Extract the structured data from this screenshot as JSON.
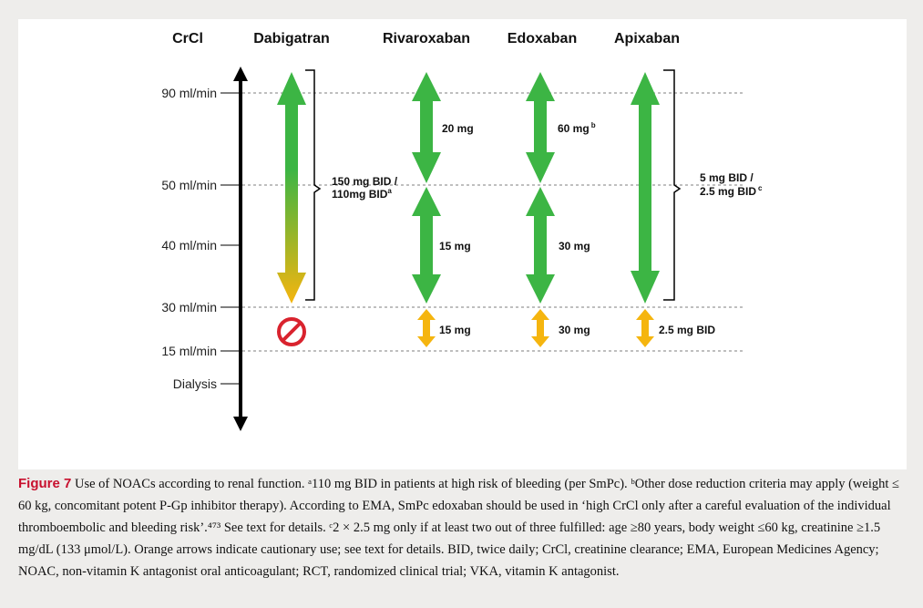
{
  "headers": {
    "crcl": "CrCl",
    "dabigatran": "Dabigatran",
    "rivaroxaban": "Rivaroxaban",
    "edoxaban": "Edoxaban",
    "apixaban": "Apixaban"
  },
  "crcl_levels": [
    "90 ml/min",
    "50 ml/min",
    "40 ml/min",
    "30 ml/min",
    "15 ml/min",
    "Dialysis"
  ],
  "doses": {
    "dabigatran_line1": "150 mg BID /",
    "dabigatran_line2": "110mg BID",
    "dabigatran_sup": "a",
    "rivaroxaban_high": "20 mg",
    "rivaroxaban_mid": "15 mg",
    "rivaroxaban_low": "15 mg",
    "edoxaban_high": "60 mg",
    "edoxaban_high_sup": "b",
    "edoxaban_mid": "30 mg",
    "edoxaban_low": "30 mg",
    "apixaban_line1": "5 mg BID /",
    "apixaban_line2": "2.5 mg BID",
    "apixaban_sup": "c",
    "apixaban_low": "2.5 mg BID"
  },
  "colors": {
    "green": "#3cb544",
    "orange": "#f5b50f",
    "red": "#d9232e",
    "caption_label": "#c8102e"
  },
  "icons": {
    "not_recommended": "prohibited-icon"
  },
  "caption": {
    "label": "Figure 7",
    "text": "Use of NOACs according to renal function. ᵃ110 mg BID in patients at high risk of bleeding (per SmPc). ᵇOther dose reduction criteria may apply (weight ≤ 60 kg, concomitant potent P-Gp inhibitor therapy). According to EMA, SmPc edoxaban should be used in ‘high CrCl only after a careful evaluation of the individual thromboembolic and bleeding risk’.⁴⁷³ See text for details. ᶜ2 × 2.5 mg only if at least two out of three fulfilled: age ≥80 years, body weight ≤60 kg, creatinine ≥1.5 mg/dL (133 μmol/L). Orange arrows indicate cautionary use; see text for details. BID, twice daily; CrCl, creatinine clearance; EMA, European Medicines Agency; NOAC, non-vitamin K antagonist oral anticoagulant; RCT, randomized clinical trial; VKA, vitamin K antagonist."
  }
}
